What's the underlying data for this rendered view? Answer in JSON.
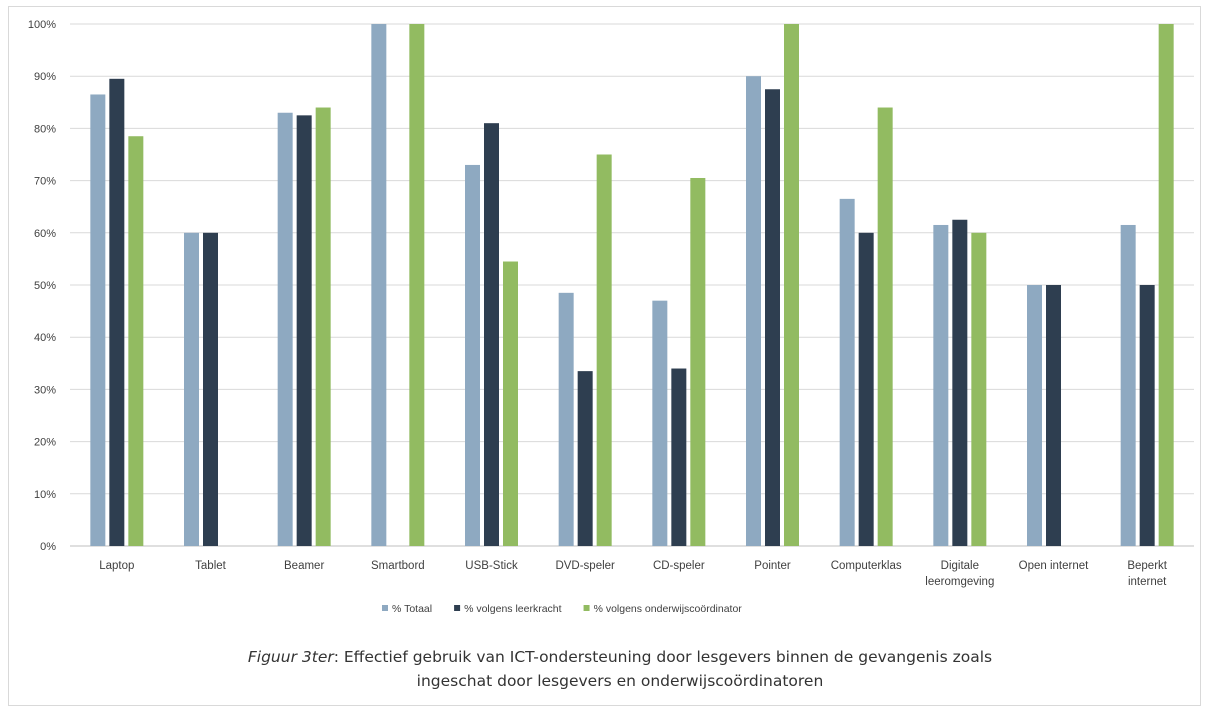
{
  "chart_data": {
    "type": "bar",
    "categories": [
      [
        "Laptop"
      ],
      [
        "Tablet"
      ],
      [
        "Beamer"
      ],
      [
        "Smartbord"
      ],
      [
        "USB-Stick"
      ],
      [
        "DVD-speler"
      ],
      [
        "CD-speler"
      ],
      [
        "Pointer"
      ],
      [
        "Computerklas"
      ],
      [
        "Digitale",
        "leeromgeving"
      ],
      [
        "Open internet"
      ],
      [
        "Beperkt",
        "internet"
      ]
    ],
    "series": [
      {
        "name": "% Totaal",
        "color": "#8ea9c1",
        "values": [
          86.5,
          60,
          83,
          100,
          73,
          48.5,
          47,
          90,
          66.5,
          61.5,
          50,
          61.5
        ]
      },
      {
        "name": "% volgens leerkracht",
        "color": "#2e3e50",
        "values": [
          89.5,
          60,
          82.5,
          0,
          81,
          33.5,
          34,
          87.5,
          60,
          62.5,
          50,
          50
        ]
      },
      {
        "name": "% volgens onderwijscoördinator",
        "color": "#92bb61",
        "values": [
          78.5,
          0,
          84,
          100,
          54.5,
          75,
          70.5,
          100,
          84,
          60,
          0,
          100
        ]
      }
    ],
    "ylim": [
      0,
      100
    ],
    "yticks": [
      "0%",
      "10%",
      "20%",
      "30%",
      "40%",
      "50%",
      "60%",
      "70%",
      "80%",
      "90%",
      "100%"
    ],
    "grid": true,
    "legend_position": "bottom"
  },
  "caption": {
    "figure_label": "Figuur 3ter",
    "text_line1": ": Effectief gebruik van ICT-ondersteuning door lesgevers binnen de gevangenis zoals",
    "text_line2": "ingeschat door lesgevers en onderwijscoördinatoren"
  }
}
